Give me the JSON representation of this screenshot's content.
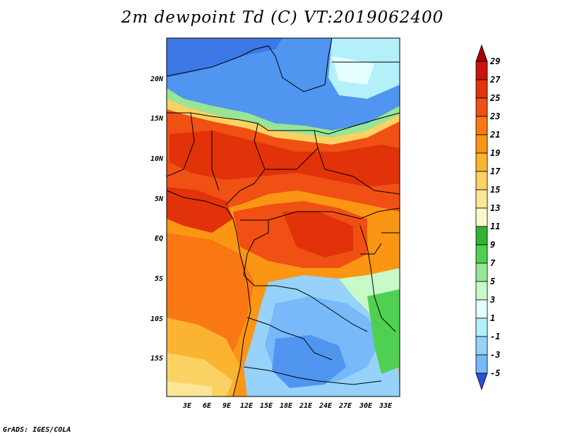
{
  "title": "2m dewpoint Td (C) VT:2019062400",
  "footer": "GrADS: IGES/COLA",
  "map": {
    "lat_labels": [
      "20N",
      "15N",
      "10N",
      "5N",
      "EQ",
      "5S",
      "10S",
      "15S"
    ],
    "lon_labels": [
      "3E",
      "6E",
      "9E",
      "12E",
      "15E",
      "18E",
      "21E",
      "24E",
      "27E",
      "30E",
      "33E"
    ]
  },
  "colorbar": {
    "levels": [
      "29",
      "27",
      "25",
      "23",
      "21",
      "19",
      "17",
      "15",
      "13",
      "11",
      "9",
      "7",
      "5",
      "3",
      "1",
      "-1",
      "-3",
      "-5"
    ],
    "colors": [
      "#a50000",
      "#c8140a",
      "#e1320a",
      "#f05014",
      "#fa7814",
      "#fa9614",
      "#fab432",
      "#fad264",
      "#fae696",
      "#fafac8",
      "#32b432",
      "#50d050",
      "#96e696",
      "#c8fac8",
      "#e6ffff",
      "#b4f0fa",
      "#96d2fa",
      "#78b9fa",
      "#5096f0",
      "#3c78e6",
      "#2850d2"
    ]
  }
}
